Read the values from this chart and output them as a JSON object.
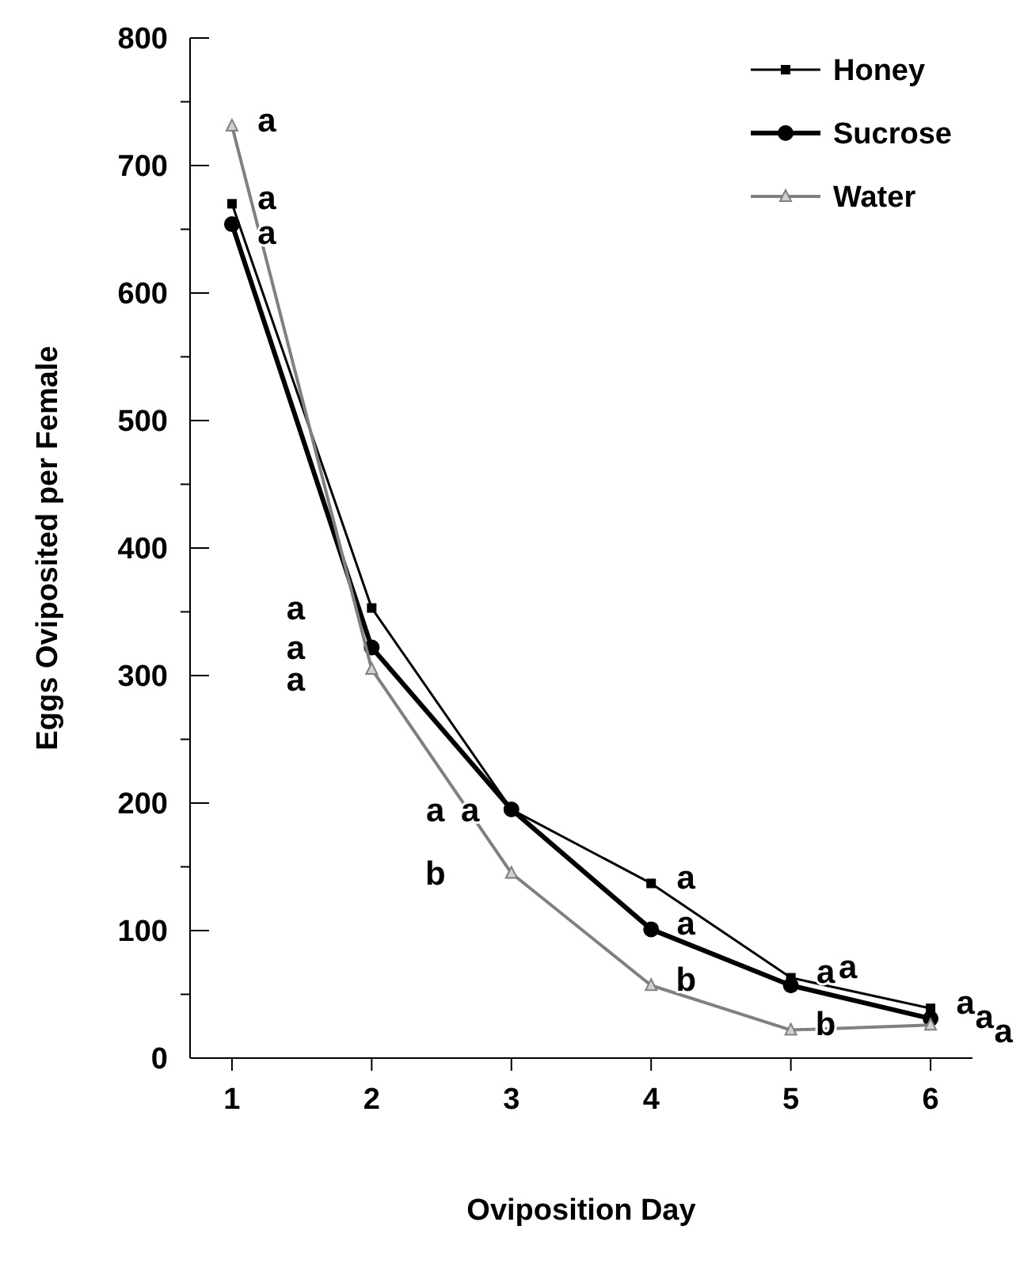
{
  "chart_data": {
    "type": "line",
    "xlabel": "Oviposition Day",
    "ylabel": "Eggs Oviposited per Female",
    "x": [
      1,
      2,
      3,
      4,
      5,
      6
    ],
    "xlim": [
      0.7,
      6.3
    ],
    "xticks": [
      1,
      2,
      3,
      4,
      5,
      6
    ],
    "ylim": [
      0,
      800
    ],
    "yticks": [
      0,
      {
        "value": 50,
        "label": null
      },
      100,
      {
        "value": 150,
        "label": null
      },
      200,
      {
        "value": 250,
        "label": null
      },
      300,
      {
        "value": 350,
        "label": null
      },
      400,
      {
        "value": 450,
        "label": null
      },
      500,
      {
        "value": 550,
        "label": null
      },
      600,
      {
        "value": 650,
        "label": null
      },
      700,
      {
        "value": 750,
        "label": null
      },
      800
    ],
    "grid": false,
    "legend": "top right",
    "line_style": "solid",
    "series": [
      {
        "name": "Honey",
        "color": "#000000",
        "marker": "square",
        "values": [
          670,
          353,
          195,
          137,
          63,
          39
        ]
      },
      {
        "name": "Sucrose",
        "color": "#000000",
        "marker": "circle",
        "values": [
          654,
          322,
          195,
          101,
          57,
          31
        ]
      },
      {
        "name": "Water",
        "color": "#808080",
        "marker": "triangle",
        "values": [
          731,
          305,
          145,
          57,
          22,
          26
        ]
      }
    ],
    "annotations": [
      {
        "text": "a",
        "x": 1,
        "y": 731
      },
      {
        "text": "a",
        "x": 1,
        "y": 670
      },
      {
        "text": "a",
        "x": 1,
        "y": 654
      },
      {
        "text": "a",
        "x": 2,
        "y": 353
      },
      {
        "text": "a",
        "x": 2,
        "y": 322
      },
      {
        "text": "a",
        "x": 2,
        "y": 305
      },
      {
        "text": "a",
        "x": 3,
        "y": 195
      },
      {
        "text": "a",
        "x": 3,
        "y": 195
      },
      {
        "text": "b",
        "x": 3,
        "y": 145
      },
      {
        "text": "a",
        "x": 4,
        "y": 137
      },
      {
        "text": "a",
        "x": 4,
        "y": 101
      },
      {
        "text": "b",
        "x": 4,
        "y": 57
      },
      {
        "text": "a",
        "x": 5,
        "y": 63
      },
      {
        "text": "a",
        "x": 5,
        "y": 57
      },
      {
        "text": "b",
        "x": 5,
        "y": 22
      },
      {
        "text": "a",
        "x": 6,
        "y": 39
      },
      {
        "text": "a",
        "x": 6,
        "y": 31
      },
      {
        "text": "a",
        "x": 6,
        "y": 26
      }
    ]
  }
}
